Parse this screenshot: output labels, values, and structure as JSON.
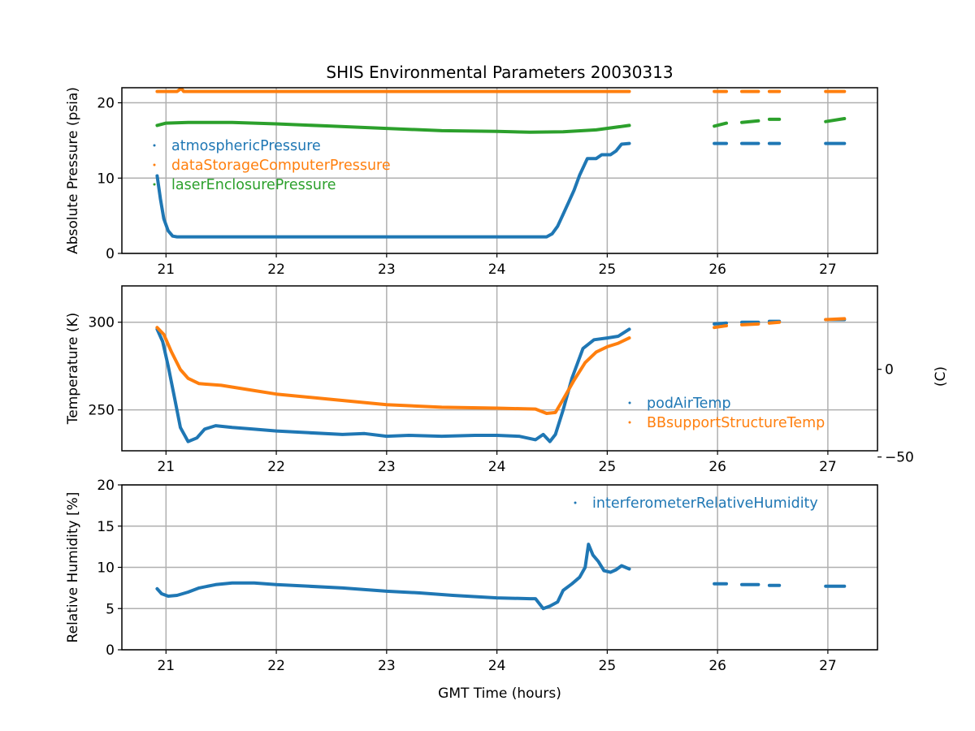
{
  "chart_data": [
    {
      "type": "scatter",
      "title": "SHIS Environmental Parameters 20030313",
      "xlabel": "",
      "ylabel": "Absolute Pressure (psia)",
      "xlim": [
        20.6,
        27.45
      ],
      "ylim": [
        0,
        22
      ],
      "xticks": [
        "21",
        "22",
        "23",
        "24",
        "25",
        "26",
        "27"
      ],
      "yticks": [
        "0",
        "10",
        "20"
      ],
      "grid": true,
      "legend_placement": "center-left",
      "series": [
        {
          "name": "atmosphericPressure",
          "color": "#1f77b4",
          "segments": [
            [
              [
                20.92,
                10.3
              ],
              [
                20.95,
                7.2
              ],
              [
                20.98,
                4.6
              ],
              [
                21.02,
                3.0
              ],
              [
                21.06,
                2.3
              ],
              [
                21.1,
                2.2
              ],
              [
                21.5,
                2.2
              ],
              [
                22.0,
                2.2
              ],
              [
                23.0,
                2.2
              ],
              [
                24.0,
                2.2
              ],
              [
                24.45,
                2.2
              ],
              [
                24.5,
                2.6
              ],
              [
                24.55,
                3.6
              ],
              [
                24.6,
                5.2
              ],
              [
                24.65,
                6.8
              ],
              [
                24.7,
                8.4
              ],
              [
                24.75,
                10.4
              ],
              [
                24.82,
                12.6
              ],
              [
                24.9,
                12.6
              ],
              [
                24.95,
                13.1
              ],
              [
                25.03,
                13.1
              ],
              [
                25.08,
                13.6
              ],
              [
                25.13,
                14.5
              ],
              [
                25.2,
                14.6
              ]
            ],
            [
              [
                25.97,
                14.6
              ],
              [
                26.08,
                14.6
              ]
            ],
            [
              [
                26.22,
                14.6
              ],
              [
                26.37,
                14.6
              ]
            ],
            [
              [
                26.47,
                14.6
              ],
              [
                26.56,
                14.6
              ]
            ],
            [
              [
                26.98,
                14.6
              ],
              [
                27.15,
                14.6
              ]
            ]
          ]
        },
        {
          "name": "dataStorageComputerPressure",
          "color": "#ff7f0e",
          "segments": [
            [
              [
                20.92,
                21.5
              ],
              [
                21.1,
                21.5
              ],
              [
                21.14,
                21.9
              ],
              [
                21.16,
                21.5
              ],
              [
                22.0,
                21.5
              ],
              [
                23.0,
                21.5
              ],
              [
                24.0,
                21.5
              ],
              [
                25.0,
                21.5
              ],
              [
                25.2,
                21.5
              ]
            ],
            [
              [
                25.97,
                21.5
              ],
              [
                26.08,
                21.5
              ]
            ],
            [
              [
                26.22,
                21.5
              ],
              [
                26.37,
                21.5
              ]
            ],
            [
              [
                26.47,
                21.5
              ],
              [
                26.56,
                21.5
              ]
            ],
            [
              [
                26.98,
                21.5
              ],
              [
                27.15,
                21.5
              ]
            ]
          ]
        },
        {
          "name": "laserEnclosurePressure",
          "color": "#2ca02c",
          "segments": [
            [
              [
                20.92,
                17.0
              ],
              [
                21.0,
                17.3
              ],
              [
                21.2,
                17.4
              ],
              [
                21.6,
                17.4
              ],
              [
                22.0,
                17.2
              ],
              [
                22.5,
                16.9
              ],
              [
                23.0,
                16.6
              ],
              [
                23.5,
                16.3
              ],
              [
                24.0,
                16.2
              ],
              [
                24.3,
                16.1
              ],
              [
                24.6,
                16.15
              ],
              [
                24.9,
                16.4
              ],
              [
                25.2,
                17.0
              ]
            ],
            [
              [
                25.97,
                16.9
              ],
              [
                26.08,
                17.3
              ]
            ],
            [
              [
                26.22,
                17.4
              ],
              [
                26.37,
                17.6
              ]
            ],
            [
              [
                26.47,
                17.8
              ],
              [
                26.56,
                17.8
              ]
            ],
            [
              [
                26.98,
                17.5
              ],
              [
                27.15,
                17.9
              ]
            ]
          ]
        }
      ]
    },
    {
      "type": "scatter",
      "title": "",
      "xlabel": "",
      "ylabel": "Temperature (K)",
      "ylabel_right": "(C)",
      "xlim": [
        20.6,
        27.45
      ],
      "ylim": [
        226.7,
        320.7
      ],
      "xticks": [
        "21",
        "22",
        "23",
        "24",
        "25",
        "26",
        "27"
      ],
      "yticks": [
        "250",
        "300"
      ],
      "yticks_right": [
        "0",
        "−50"
      ],
      "yticks_right_values_c": [
        0,
        -50
      ],
      "grid": true,
      "legend_placement": "lower-right",
      "series": [
        {
          "name": "podAirTemp",
          "color": "#1f77b4",
          "segments": [
            [
              [
                20.92,
                296
              ],
              [
                20.97,
                289
              ],
              [
                21.02,
                275
              ],
              [
                21.08,
                256
              ],
              [
                21.13,
                240
              ],
              [
                21.2,
                232
              ],
              [
                21.28,
                234
              ],
              [
                21.35,
                239
              ],
              [
                21.45,
                241
              ],
              [
                21.6,
                240
              ],
              [
                21.8,
                239
              ],
              [
                22.0,
                238
              ],
              [
                22.3,
                237
              ],
              [
                22.6,
                236
              ],
              [
                22.8,
                236.5
              ],
              [
                23.0,
                235
              ],
              [
                23.2,
                235.5
              ],
              [
                23.5,
                235
              ],
              [
                23.8,
                235.5
              ],
              [
                24.0,
                235.5
              ],
              [
                24.2,
                235
              ],
              [
                24.35,
                233
              ],
              [
                24.42,
                236
              ],
              [
                24.48,
                232
              ],
              [
                24.53,
                236
              ],
              [
                24.6,
                250
              ],
              [
                24.68,
                268
              ],
              [
                24.78,
                285
              ],
              [
                24.88,
                290
              ],
              [
                25.0,
                291
              ],
              [
                25.1,
                292
              ],
              [
                25.2,
                296
              ]
            ],
            [
              [
                25.97,
                299
              ],
              [
                26.08,
                299.5
              ]
            ],
            [
              [
                26.22,
                300
              ],
              [
                26.37,
                300
              ]
            ],
            [
              [
                26.47,
                300.5
              ],
              [
                26.56,
                300.5
              ]
            ],
            [
              [
                26.98,
                301.5
              ],
              [
                27.15,
                301.5
              ]
            ]
          ]
        },
        {
          "name": "BBsupportStructureTemp",
          "color": "#ff7f0e",
          "segments": [
            [
              [
                20.92,
                297
              ],
              [
                20.98,
                293
              ],
              [
                21.05,
                283
              ],
              [
                21.13,
                273
              ],
              [
                21.2,
                268
              ],
              [
                21.3,
                265
              ],
              [
                21.5,
                264
              ],
              [
                21.8,
                261
              ],
              [
                22.0,
                259
              ],
              [
                22.5,
                256
              ],
              [
                23.0,
                253
              ],
              [
                23.5,
                251.5
              ],
              [
                24.0,
                251
              ],
              [
                24.35,
                250.5
              ],
              [
                24.45,
                248
              ],
              [
                24.53,
                248.5
              ],
              [
                24.6,
                256
              ],
              [
                24.7,
                267
              ],
              [
                24.8,
                277
              ],
              [
                24.9,
                283
              ],
              [
                25.0,
                286
              ],
              [
                25.1,
                288
              ],
              [
                25.2,
                291
              ]
            ],
            [
              [
                25.97,
                297
              ],
              [
                26.08,
                298
              ]
            ],
            [
              [
                26.22,
                298.5
              ],
              [
                26.37,
                299
              ]
            ],
            [
              [
                26.47,
                299.5
              ],
              [
                26.56,
                300
              ]
            ],
            [
              [
                26.98,
                301.5
              ],
              [
                27.15,
                302
              ]
            ]
          ]
        }
      ]
    },
    {
      "type": "scatter",
      "title": "",
      "xlabel": "GMT Time (hours)",
      "ylabel": "Relative Humidity [%]",
      "xlim": [
        20.6,
        27.45
      ],
      "ylim": [
        0,
        20
      ],
      "xticks": [
        "21",
        "22",
        "23",
        "24",
        "25",
        "26",
        "27"
      ],
      "yticks": [
        "0",
        "5",
        "10",
        "15",
        "20"
      ],
      "grid": true,
      "legend_placement": "upper-right",
      "series": [
        {
          "name": "interferometerRelativeHumidity",
          "color": "#1f77b4",
          "segments": [
            [
              [
                20.92,
                7.4
              ],
              [
                20.96,
                6.8
              ],
              [
                21.02,
                6.5
              ],
              [
                21.1,
                6.6
              ],
              [
                21.2,
                7.0
              ],
              [
                21.3,
                7.5
              ],
              [
                21.45,
                7.9
              ],
              [
                21.6,
                8.1
              ],
              [
                21.8,
                8.1
              ],
              [
                22.0,
                7.9
              ],
              [
                22.3,
                7.7
              ],
              [
                22.6,
                7.5
              ],
              [
                23.0,
                7.1
              ],
              [
                23.3,
                6.9
              ],
              [
                23.6,
                6.6
              ],
              [
                24.0,
                6.3
              ],
              [
                24.3,
                6.2
              ],
              [
                24.35,
                6.2
              ],
              [
                24.42,
                5.0
              ],
              [
                24.48,
                5.3
              ],
              [
                24.55,
                5.8
              ],
              [
                24.6,
                7.2
              ],
              [
                24.68,
                8.0
              ],
              [
                24.75,
                8.8
              ],
              [
                24.8,
                10.0
              ],
              [
                24.83,
                12.8
              ],
              [
                24.87,
                11.5
              ],
              [
                24.92,
                10.7
              ],
              [
                24.97,
                9.6
              ],
              [
                25.03,
                9.4
              ],
              [
                25.08,
                9.7
              ],
              [
                25.13,
                10.2
              ],
              [
                25.2,
                9.8
              ]
            ],
            [
              [
                25.97,
                8.0
              ],
              [
                26.08,
                8.0
              ]
            ],
            [
              [
                26.22,
                7.9
              ],
              [
                26.37,
                7.9
              ]
            ],
            [
              [
                26.47,
                7.8
              ],
              [
                26.56,
                7.8
              ]
            ],
            [
              [
                26.98,
                7.7
              ],
              [
                27.15,
                7.7
              ]
            ]
          ]
        }
      ]
    }
  ]
}
